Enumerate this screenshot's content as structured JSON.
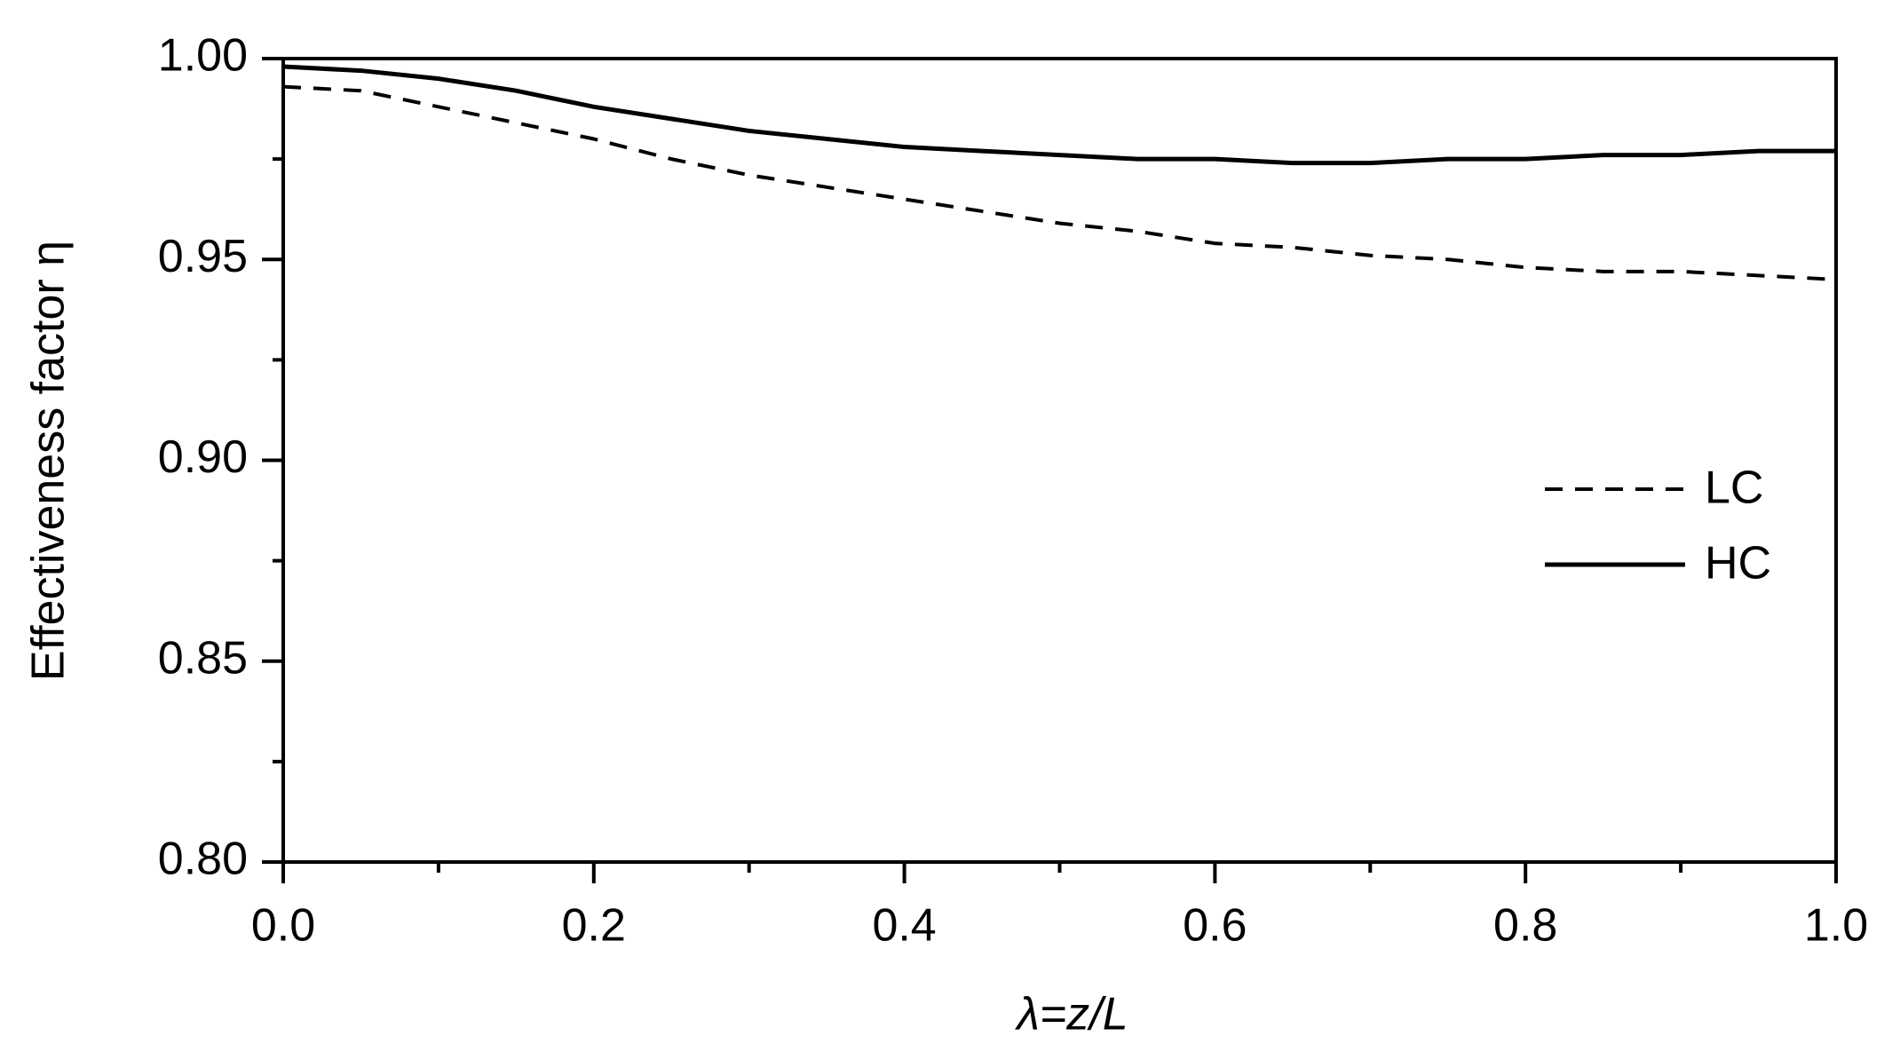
{
  "chart_data": {
    "type": "line",
    "xlabel": "λ=z/L",
    "ylabel": "Effectiveness factor η",
    "x": [
      0,
      0.05,
      0.1,
      0.15,
      0.2,
      0.25,
      0.3,
      0.35,
      0.4,
      0.45,
      0.5,
      0.55,
      0.6,
      0.65,
      0.7,
      0.75,
      0.8,
      0.85,
      0.9,
      0.95,
      1.0
    ],
    "series": [
      {
        "name": "LC",
        "color": "#000000",
        "style": "dashed",
        "values": [
          0.993,
          0.992,
          0.988,
          0.984,
          0.98,
          0.975,
          0.971,
          0.968,
          0.965,
          0.962,
          0.959,
          0.957,
          0.954,
          0.953,
          0.951,
          0.95,
          0.948,
          0.947,
          0.947,
          0.946,
          0.945
        ]
      },
      {
        "name": "HC",
        "color": "#000000",
        "style": "solid",
        "values": [
          0.998,
          0.997,
          0.995,
          0.992,
          0.988,
          0.985,
          0.982,
          0.98,
          0.978,
          0.977,
          0.976,
          0.975,
          0.975,
          0.974,
          0.974,
          0.975,
          0.975,
          0.976,
          0.976,
          0.977,
          0.977
        ]
      }
    ],
    "xlim": [
      0,
      1.0
    ],
    "xticks": [
      {
        "value": 0,
        "label": "0.0"
      },
      {
        "value": 0.2,
        "label": "0.2"
      },
      {
        "value": 0.4,
        "label": "0.4"
      },
      {
        "value": 0.6,
        "label": "0.6"
      },
      {
        "value": 0.8,
        "label": "0.8"
      },
      {
        "value": 1.0,
        "label": "1.0"
      }
    ],
    "ylim": [
      0.8,
      1.0
    ],
    "yticks": [
      {
        "value": 0.8,
        "label": "0.80"
      },
      {
        "value": 0.85,
        "label": "0.85"
      },
      {
        "value": 0.9,
        "label": "0.90"
      },
      {
        "value": 0.95,
        "label": "0.95"
      },
      {
        "value": 1.0,
        "label": "1.00"
      }
    ],
    "grid": false,
    "legend": "right"
  }
}
